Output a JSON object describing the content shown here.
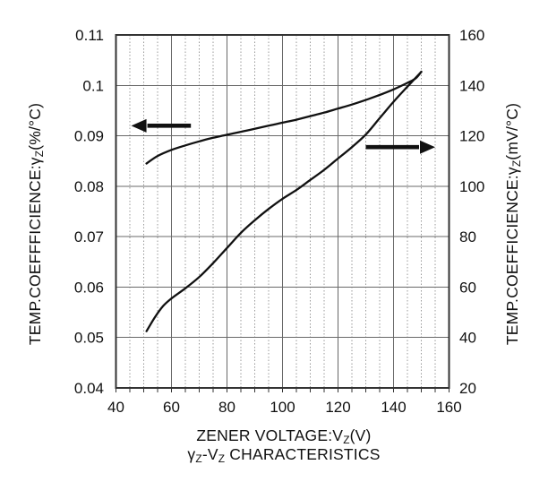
{
  "chart_data": {
    "type": "line",
    "background": "#ffffff",
    "labels": {
      "y_left": [
        {
          "t": "TEMP.COEFFFICIENCE:γ"
        },
        {
          "t": "Z",
          "sub": true
        },
        {
          "t": "(%/°C)"
        }
      ],
      "y_right": [
        {
          "t": "TEMP.COEFFICIENCE:γ"
        },
        {
          "t": "Z",
          "sub": true
        },
        {
          "t": "(mV/°C)"
        }
      ],
      "x": [
        {
          "t": "ZENER VOLTAGE:V"
        },
        {
          "t": "Z",
          "sub": true
        },
        {
          "t": "(V)"
        }
      ],
      "title": [
        {
          "t": "γ"
        },
        {
          "t": "Z",
          "sub": true
        },
        {
          "t": "-V"
        },
        {
          "t": "Z",
          "sub": true
        },
        {
          "t": " CHARACTERISTICS"
        }
      ]
    },
    "x_axis": {
      "min": 40,
      "max": 160,
      "major_step": 20,
      "minor_step": 5,
      "ticks": [
        40,
        60,
        80,
        100,
        120,
        140,
        160
      ]
    },
    "y_left": {
      "min": 0.04,
      "max": 0.11,
      "major_step": 0.01,
      "ticks": [
        {
          "v": 0.11,
          "label": "0.11"
        },
        {
          "v": 0.1,
          "label": "0.1"
        },
        {
          "v": 0.09,
          "label": "0.09"
        },
        {
          "v": 0.08,
          "label": "0.08"
        },
        {
          "v": 0.07,
          "label": "0.07"
        },
        {
          "v": 0.06,
          "label": "0.06"
        },
        {
          "v": 0.05,
          "label": "0.05"
        },
        {
          "v": 0.04,
          "label": "0.04"
        }
      ]
    },
    "y_right": {
      "min": 20,
      "max": 160,
      "major_step": 20,
      "ticks": [
        160,
        140,
        120,
        100,
        80,
        60,
        40,
        20
      ]
    },
    "grid": {
      "vertical_major": true,
      "vertical_minor_dotted": true,
      "horizontal_major": true,
      "horizontal_minor": false
    },
    "series": [
      {
        "name": "temp-coefficient-percent",
        "axis": "left",
        "unit": "%/°C",
        "x": [
          51,
          55,
          60,
          65,
          70,
          75,
          80,
          85,
          90,
          95,
          100,
          105,
          110,
          115,
          120,
          125,
          130,
          135,
          140,
          145,
          148,
          150
        ],
        "y": [
          0.0845,
          0.086,
          0.0872,
          0.0881,
          0.0889,
          0.0896,
          0.0902,
          0.0908,
          0.0914,
          0.092,
          0.0926,
          0.0932,
          0.0939,
          0.0946,
          0.0954,
          0.0962,
          0.0971,
          0.0981,
          0.0992,
          0.1005,
          0.1014,
          0.1027
        ]
      },
      {
        "name": "temp-coefficient-mv",
        "axis": "right",
        "unit": "mV/°C",
        "x": [
          51,
          54,
          57,
          60,
          65,
          70,
          75,
          80,
          85,
          90,
          95,
          100,
          105,
          110,
          115,
          120,
          125,
          130,
          135,
          140,
          145,
          150
        ],
        "y": [
          42.5,
          48,
          52.5,
          55.5,
          59.5,
          64,
          69.5,
          75.5,
          81.5,
          86.5,
          91,
          95,
          98.5,
          102.5,
          106.5,
          111,
          115.5,
          120.5,
          127,
          133.5,
          139.5,
          145.4
        ]
      }
    ],
    "arrows": [
      {
        "name": "left-arrow",
        "axis": "left",
        "y": 0.092,
        "x_tail": 67,
        "x_tip": 45.5,
        "direction": "left"
      },
      {
        "name": "right-arrow",
        "axis": "right",
        "y": 115.5,
        "x_tail": 130,
        "x_tip": 155,
        "direction": "right"
      }
    ],
    "colors": {
      "text": "#111111",
      "curve": "#111111",
      "arrow": "#111111",
      "grid_major": "#686868",
      "grid_minor": "#9a9a9a",
      "border": "#333333"
    }
  }
}
